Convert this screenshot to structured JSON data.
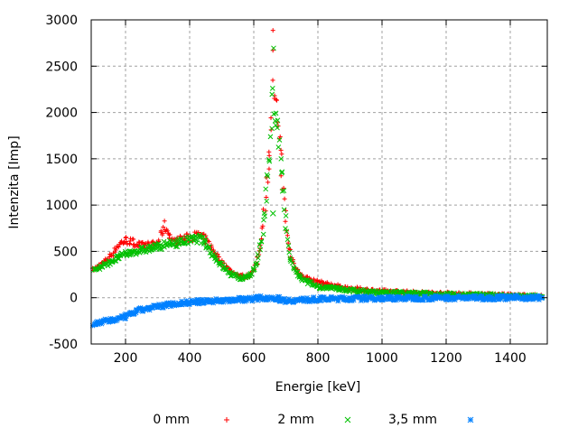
{
  "chart_data": {
    "type": "scatter",
    "title": "",
    "xlabel": "Energie [keV]",
    "ylabel": "Intenzita [Imp]",
    "xlim": [
      100,
      1500
    ],
    "ylim": [
      -500,
      3000
    ],
    "xticks": [
      200,
      400,
      600,
      800,
      1000,
      1200,
      1400
    ],
    "yticks": [
      -500,
      0,
      500,
      1000,
      1500,
      2000,
      2500,
      3000
    ],
    "grid": true,
    "legend_placement": "bottom",
    "series": [
      {
        "name": "0 mm",
        "marker": "plus",
        "color": "#ff0000",
        "points": [
          [
            100,
            300
          ],
          [
            130,
            380
          ],
          [
            160,
            480
          ],
          [
            180,
            580
          ],
          [
            200,
            620
          ],
          [
            220,
            600
          ],
          [
            250,
            560
          ],
          [
            280,
            570
          ],
          [
            300,
            590
          ],
          [
            320,
            780
          ],
          [
            350,
            600
          ],
          [
            380,
            640
          ],
          [
            410,
            660
          ],
          [
            430,
            680
          ],
          [
            450,
            620
          ],
          [
            470,
            520
          ],
          [
            500,
            380
          ],
          [
            530,
            280
          ],
          [
            560,
            230
          ],
          [
            590,
            240
          ],
          [
            610,
            380
          ],
          [
            625,
            650
          ],
          [
            635,
            1000
          ],
          [
            645,
            1450
          ],
          [
            655,
            1850
          ],
          [
            662,
            2100
          ],
          [
            668,
            2050
          ],
          [
            675,
            1900
          ],
          [
            683,
            1600
          ],
          [
            690,
            1250
          ],
          [
            698,
            900
          ],
          [
            705,
            650
          ],
          [
            715,
            450
          ],
          [
            730,
            320
          ],
          [
            750,
            240
          ],
          [
            780,
            190
          ],
          [
            800,
            170
          ],
          [
            850,
            130
          ],
          [
            900,
            100
          ],
          [
            950,
            85
          ],
          [
            1000,
            70
          ],
          [
            1100,
            55
          ],
          [
            1200,
            45
          ],
          [
            1300,
            35
          ],
          [
            1400,
            25
          ],
          [
            1500,
            15
          ],
          [
            660,
            2970
          ]
        ]
      },
      {
        "name": "2 mm",
        "marker": "cross",
        "color": "#00c000",
        "points": [
          [
            100,
            300
          ],
          [
            130,
            340
          ],
          [
            160,
            400
          ],
          [
            180,
            440
          ],
          [
            200,
            470
          ],
          [
            230,
            500
          ],
          [
            260,
            520
          ],
          [
            290,
            540
          ],
          [
            310,
            560
          ],
          [
            340,
            580
          ],
          [
            370,
            600
          ],
          [
            400,
            620
          ],
          [
            430,
            640
          ],
          [
            450,
            590
          ],
          [
            470,
            480
          ],
          [
            500,
            350
          ],
          [
            530,
            250
          ],
          [
            560,
            210
          ],
          [
            590,
            240
          ],
          [
            610,
            370
          ],
          [
            625,
            620
          ],
          [
            635,
            950
          ],
          [
            645,
            1400
          ],
          [
            655,
            1750
          ],
          [
            662,
            1950
          ],
          [
            668,
            1950
          ],
          [
            675,
            1800
          ],
          [
            683,
            1500
          ],
          [
            690,
            1200
          ],
          [
            698,
            850
          ],
          [
            705,
            600
          ],
          [
            715,
            400
          ],
          [
            730,
            280
          ],
          [
            750,
            200
          ],
          [
            780,
            150
          ],
          [
            800,
            120
          ],
          [
            850,
            100
          ],
          [
            900,
            80
          ],
          [
            950,
            65
          ],
          [
            1000,
            55
          ],
          [
            1100,
            45
          ],
          [
            1200,
            35
          ],
          [
            1300,
            28
          ],
          [
            1400,
            20
          ],
          [
            1500,
            10
          ],
          [
            660,
            2750
          ],
          [
            660,
            910
          ]
        ]
      },
      {
        "name": "3,5 mm",
        "marker": "star",
        "color": "#0080ff",
        "points": [
          [
            100,
            -290
          ],
          [
            130,
            -260
          ],
          [
            160,
            -240
          ],
          [
            190,
            -220
          ],
          [
            220,
            -170
          ],
          [
            250,
            -130
          ],
          [
            280,
            -110
          ],
          [
            310,
            -90
          ],
          [
            340,
            -70
          ],
          [
            370,
            -60
          ],
          [
            400,
            -50
          ],
          [
            450,
            -40
          ],
          [
            500,
            -30
          ],
          [
            550,
            -20
          ],
          [
            600,
            -10
          ],
          [
            640,
            0
          ],
          [
            660,
            0
          ],
          [
            680,
            -15
          ],
          [
            700,
            -30
          ],
          [
            750,
            -25
          ],
          [
            800,
            -15
          ],
          [
            900,
            -10
          ],
          [
            1000,
            -5
          ],
          [
            1100,
            -5
          ],
          [
            1200,
            0
          ],
          [
            1300,
            0
          ],
          [
            1400,
            0
          ],
          [
            1500,
            0
          ]
        ]
      }
    ]
  }
}
